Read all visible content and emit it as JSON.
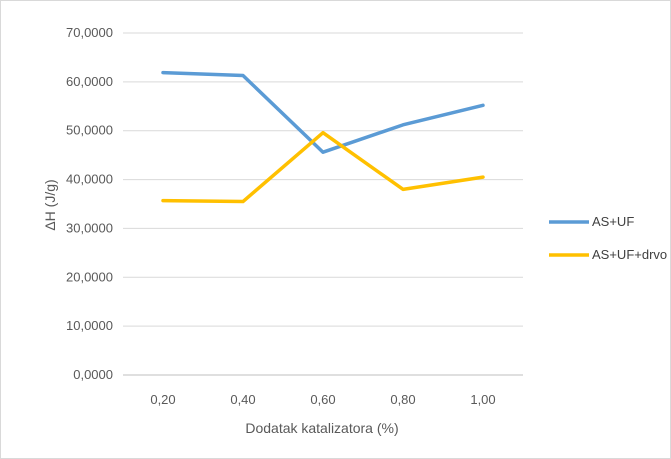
{
  "chart_data": {
    "type": "line",
    "title": "",
    "xlabel": "Dodatak katalizatora (%)",
    "ylabel": "ΔH (J/g)",
    "categories": [
      "0,20",
      "0,40",
      "0,60",
      "0,80",
      "1,00"
    ],
    "y_ticks": [
      "0,0000",
      "10,0000",
      "20,0000",
      "30,0000",
      "40,0000",
      "50,0000",
      "60,0000",
      "70,0000"
    ],
    "ylim": [
      0,
      70
    ],
    "grid": true,
    "legend_position": "right",
    "series": [
      {
        "name": "AS+UF",
        "color": "#5b9bd5",
        "values": [
          61.9,
          61.3,
          45.6,
          51.2,
          55.2
        ]
      },
      {
        "name": "AS+UF+drvo",
        "color": "#ffc000",
        "values": [
          35.7,
          35.5,
          49.6,
          38.0,
          40.5
        ]
      }
    ]
  }
}
